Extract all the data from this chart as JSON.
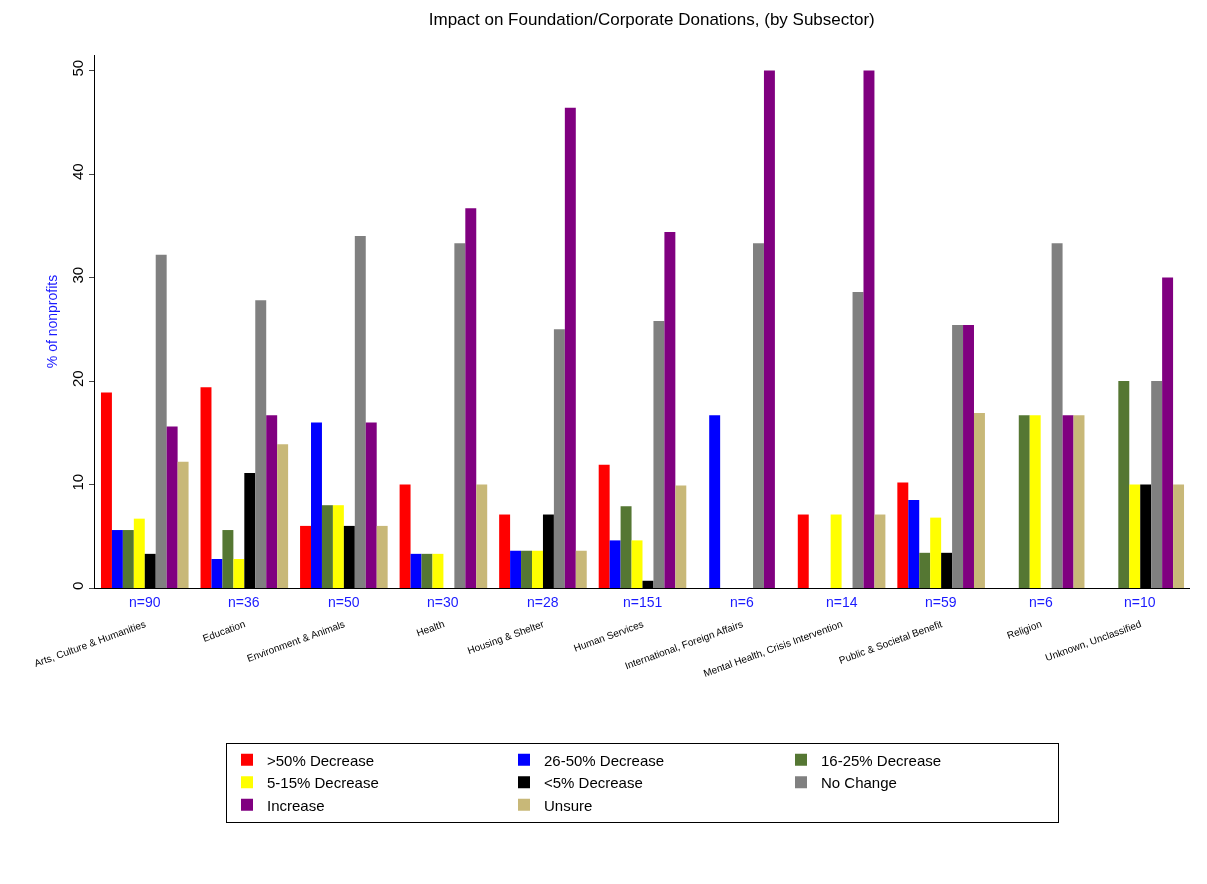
{
  "chart_data": {
    "type": "bar",
    "title": "Impact on Foundation/Corporate Donations, (by Subsector)",
    "ylabel": "% of nonprofits",
    "categories": [
      "Arts, Culture & Humanities",
      "Education",
      "Environment & Animals",
      "Health",
      "Housing & Shelter",
      "Human Services",
      "International, Foreign Affairs",
      "Mental Health, Crisis Intervention",
      "Public & Societal Benefit",
      "Religion",
      "Unknown, Unclassified"
    ],
    "series": [
      {
        "name": ">50% Decrease",
        "color": "#ff0000",
        "values": [
          18.9,
          19.4,
          6,
          10,
          7.1,
          11.9,
          null,
          7.1,
          10.2,
          null,
          null
        ]
      },
      {
        "name": "26-50% Decrease",
        "color": "#0000ff",
        "values": [
          5.6,
          2.8,
          16,
          3.3,
          3.6,
          4.6,
          16.7,
          null,
          8.5,
          null,
          null
        ]
      },
      {
        "name": "16-25% Decrease",
        "color": "#557733",
        "values": [
          5.6,
          5.6,
          8,
          3.3,
          3.6,
          7.9,
          null,
          null,
          3.4,
          16.7,
          20
        ]
      },
      {
        "name": "5-15% Decrease",
        "color": "#ffff00",
        "values": [
          6.7,
          2.8,
          8,
          3.3,
          3.6,
          4.6,
          null,
          7.1,
          6.8,
          16.7,
          10
        ]
      },
      {
        "name": "<5% Decrease",
        "color": "#000000",
        "values": [
          3.3,
          11.1,
          6,
          null,
          7.1,
          0.7,
          null,
          null,
          3.4,
          null,
          10
        ]
      },
      {
        "name": "No Change",
        "color": "#808080",
        "values": [
          32.2,
          27.8,
          34,
          33.3,
          25,
          25.8,
          33.3,
          28.6,
          25.4,
          33.3,
          20
        ]
      },
      {
        "name": "Increase",
        "color": "#800080",
        "values": [
          15.6,
          16.7,
          16,
          36.7,
          46.4,
          34.4,
          50,
          50,
          25.4,
          16.7,
          30
        ]
      },
      {
        "name": "Unsure",
        "color": "#c8b878",
        "values": [
          12.2,
          13.9,
          6,
          10,
          3.6,
          9.9,
          null,
          7.1,
          16.9,
          16.7,
          10
        ]
      }
    ],
    "annotations": [
      "n=90",
      "n=36",
      "n=50",
      "n=30",
      "n=28",
      "n=151",
      "n=6",
      "n=14",
      "n=59",
      "n=6",
      "n=10"
    ],
    "ylim": [
      0,
      51.5
    ],
    "yticks": [
      0,
      10,
      20,
      30,
      40,
      50
    ],
    "grid": false,
    "legend": "bottom"
  }
}
